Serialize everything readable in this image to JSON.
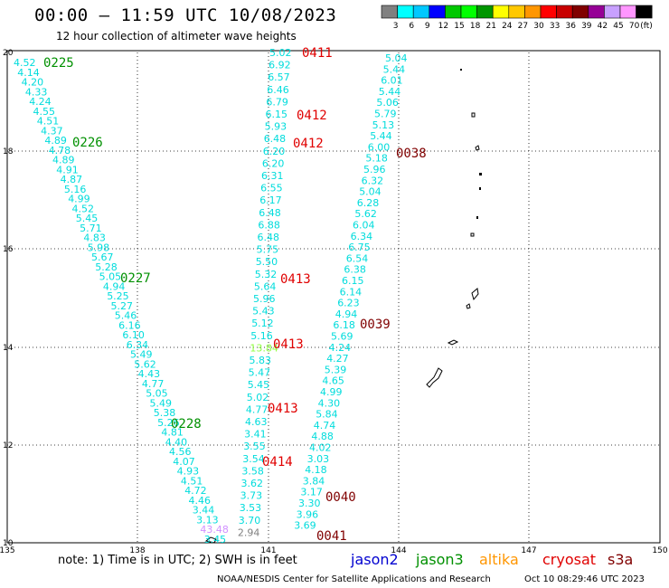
{
  "header": {
    "title": "00:00 – 11:59 UTC 10/08/2023",
    "subtitle": "12 hour collection of altimeter wave heights"
  },
  "legend": {
    "colors": [
      "#808080",
      "#00ffff",
      "#00c8ff",
      "#0000ff",
      "#00c800",
      "#00ff00",
      "#009600",
      "#ffff00",
      "#ffc800",
      "#ff9600",
      "#ff0000",
      "#c80000",
      "#800000",
      "#960096",
      "#c8a0ff",
      "#ff96ff",
      "#000000"
    ],
    "labels": [
      "3",
      "6",
      "9",
      "12",
      "15",
      "18",
      "21",
      "24",
      "27",
      "30",
      "33",
      "36",
      "39",
      "42",
      "45",
      "70",
      "(ft)"
    ]
  },
  "axes": {
    "x_ticks": [
      "135",
      "138",
      "141",
      "144",
      "147",
      "150"
    ],
    "y_ticks": [
      "10",
      "12",
      "14",
      "16",
      "18",
      "20"
    ]
  },
  "footer": {
    "note": "note:  1) Time is in UTC;  2) SWH is in feet",
    "satellites": [
      {
        "name": "jason2",
        "color": "#0000d0"
      },
      {
        "name": "jason3",
        "color": "#009000"
      },
      {
        "name": "altika",
        "color": "#ff9600"
      },
      {
        "name": "cryosat",
        "color": "#e00000"
      },
      {
        "name": "s3a",
        "color": "#800000"
      }
    ],
    "credit": "NOAA/NESDIS Center for Satellite Applications and Research",
    "timestamp": "Oct 10 08:29:46 UTC 2023"
  },
  "track_labels": [
    {
      "text": "0225",
      "color": "#009000"
    },
    {
      "text": "0226",
      "color": "#009000"
    },
    {
      "text": "0227",
      "color": "#009000"
    },
    {
      "text": "0228",
      "color": "#009000"
    },
    {
      "text": "0411",
      "color": "#e00000"
    },
    {
      "text": "0412",
      "color": "#e00000"
    },
    {
      "text": "0412",
      "color": "#e00000"
    },
    {
      "text": "0413",
      "color": "#e00000"
    },
    {
      "text": "0413",
      "color": "#e00000"
    },
    {
      "text": "0413",
      "color": "#e00000"
    },
    {
      "text": "0414",
      "color": "#e00000"
    },
    {
      "text": "0038",
      "color": "#800000"
    },
    {
      "text": "0039",
      "color": "#800000"
    },
    {
      "text": "0040",
      "color": "#800000"
    },
    {
      "text": "0041",
      "color": "#800000"
    }
  ],
  "tracks": {
    "track_a": [
      "4.52",
      "4.14",
      "4.20",
      "4.33",
      "4.24",
      "4.55",
      "4.51",
      "4.37",
      "4.89",
      "4.78",
      "4.89",
      "4.91",
      "4.87",
      "5.16",
      "4.99",
      "4.52",
      "5.45",
      "5.71",
      "4.83",
      "5.98",
      "5.67",
      "5.28",
      "5.05",
      "4.94",
      "5.25",
      "5.27",
      "5.46",
      "6.16",
      "6.10",
      "6.34",
      "5.49",
      "5.62",
      "4.43",
      "4.77",
      "5.05",
      "5.49",
      "5.38",
      "5.26",
      "4.81",
      "4.40",
      "4.56",
      "4.07",
      "4.93",
      "4.51",
      "4.72",
      "4.46",
      "3.44",
      "3.13",
      "43.48",
      "3.45"
    ],
    "track_b": [
      "5.02",
      "6.92",
      "6.57",
      "6.46",
      "6.79",
      "6.15",
      "5.93",
      "6.48",
      "6.20",
      "6.20",
      "6.31",
      "6.55",
      "6.17",
      "6.48",
      "6.88",
      "6.48",
      "5.75",
      "5.50",
      "5.32",
      "5.64",
      "5.96",
      "5.43",
      "5.12",
      "5.16",
      "13.84",
      "5.83",
      "5.47",
      "5.45",
      "5.02",
      "4.77",
      "4.63",
      "3.41",
      "3.55",
      "3.54",
      "3.58",
      "3.62",
      "3.73",
      "3.53",
      "3.70",
      "2.94"
    ],
    "track_c": [
      "5.04",
      "5.44",
      "6.01",
      "5.44",
      "5.06",
      "5.79",
      "5.13",
      "5.44",
      "6.00",
      "5.18",
      "5.96",
      "6.32",
      "5.04",
      "6.28",
      "5.62",
      "6.04",
      "6.34",
      "6.75",
      "6.54",
      "6.38",
      "6.15",
      "6.14",
      "6.23",
      "4.94",
      "6.18",
      "5.69",
      "4.24",
      "4.27",
      "5.39",
      "4.65",
      "4.99",
      "4.30",
      "5.84",
      "4.74",
      "4.88",
      "4.02",
      "3.03",
      "4.18",
      "3.84",
      "3.17",
      "3.30",
      "3.96",
      "3.69"
    ]
  }
}
